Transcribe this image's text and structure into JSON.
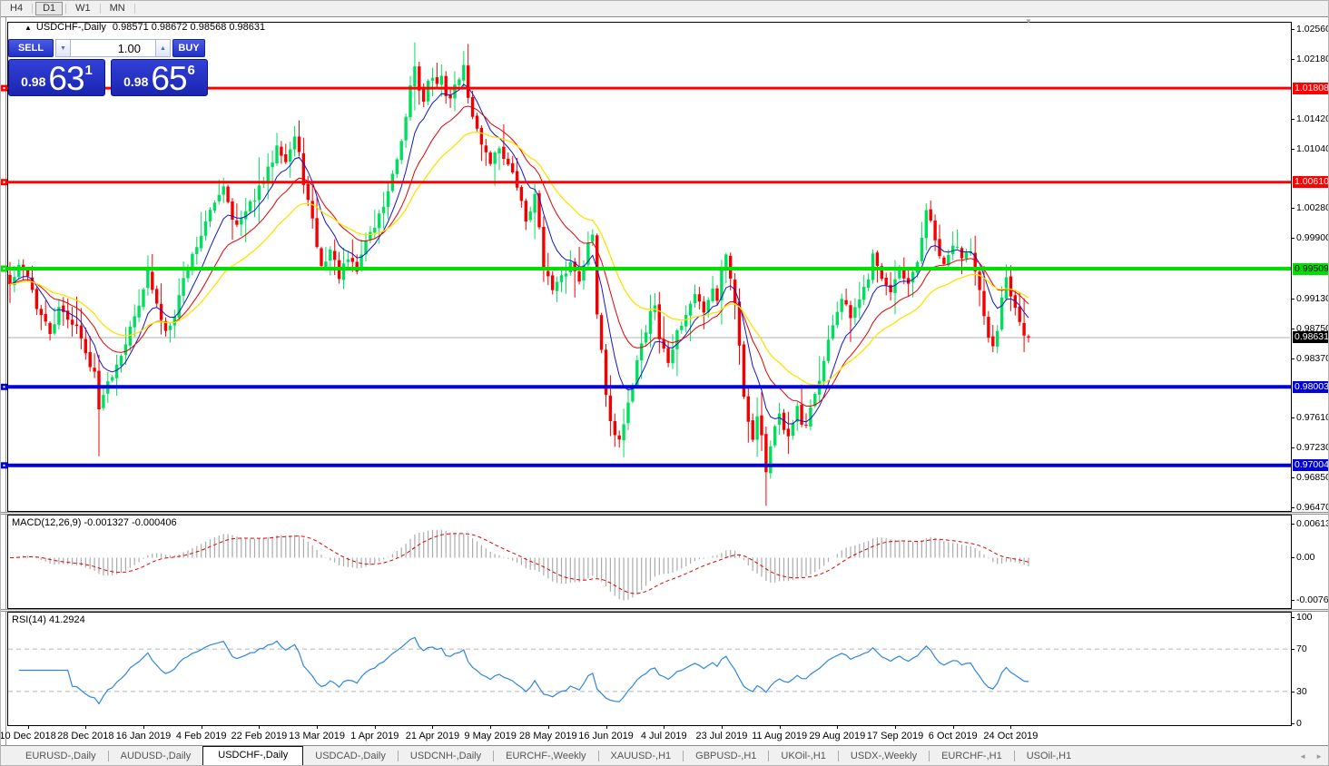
{
  "toolbar": {
    "timeframes": [
      {
        "label": "H4",
        "active": false
      },
      {
        "label": "D1",
        "active": true
      },
      {
        "label": "W1",
        "active": false
      },
      {
        "label": "MN",
        "active": false
      }
    ]
  },
  "icons": {
    "title_marker": "▲",
    "spin_down": "▼",
    "spin_up": "▲",
    "shift_marker": "▼",
    "scroll_left": "◄",
    "scroll_right": "►"
  },
  "chart": {
    "symbol_title": "USDCHF-,Daily",
    "ohlc_text": "0.98571 0.98672 0.98568 0.98631"
  },
  "trade_panel": {
    "sell_label": "SELL",
    "buy_label": "BUY",
    "volume": "1.00",
    "sell_price_base": "0.98",
    "sell_price_main": "63",
    "sell_price_pip": "1",
    "buy_price_base": "0.98",
    "buy_price_main": "65",
    "buy_price_pip": "6"
  },
  "price_axis": {
    "plain_labels": [
      "1.02560",
      "1.02180",
      "1.01420",
      "1.01040",
      "1.00280",
      "0.99900",
      "0.99130",
      "0.98750",
      "0.98370",
      "0.97610",
      "0.97230",
      "0.96850",
      "0.96470"
    ],
    "tags": [
      {
        "text": "1.01808",
        "price": 1.01808,
        "bg": "#FF0000",
        "fg": "#FFFFFF"
      },
      {
        "text": "1.00610",
        "price": 1.0061,
        "bg": "#FF0000",
        "fg": "#FFFFFF"
      },
      {
        "text": "0.99509",
        "price": 0.99509,
        "bg": "#00E000",
        "fg": "#000000"
      },
      {
        "text": "0.98631",
        "price": 0.98631,
        "bg": "#000000",
        "fg": "#FFFFFF"
      },
      {
        "text": "0.98003",
        "price": 0.98003,
        "bg": "#0000D8",
        "fg": "#FFFFFF"
      },
      {
        "text": "0.97004",
        "price": 0.97004,
        "bg": "#0000D8",
        "fg": "#FFFFFF"
      }
    ]
  },
  "macd_pane": {
    "label": "MACD(12,26,9) -0.001327 -0.000406",
    "axis_labels": [
      {
        "text": "0.00613",
        "value": 0.00613
      },
      {
        "text": "0.00",
        "value": 0
      },
      {
        "text": "-0.007612",
        "value": -0.007612
      }
    ]
  },
  "rsi_pane": {
    "label": "RSI(14) 41.2924",
    "axis_labels": [
      {
        "text": "100",
        "value": 100
      },
      {
        "text": "70",
        "value": 70
      },
      {
        "text": "30",
        "value": 30
      },
      {
        "text": "0",
        "value": 0
      }
    ],
    "levels": [
      70,
      30
    ]
  },
  "date_axis": [
    {
      "text": "10 Dec 2018",
      "bar": 4
    },
    {
      "text": "28 Dec 2018",
      "bar": 17
    },
    {
      "text": "16 Jan 2019",
      "bar": 30
    },
    {
      "text": "4 Feb 2019",
      "bar": 43
    },
    {
      "text": "22 Feb 2019",
      "bar": 56
    },
    {
      "text": "13 Mar 2019",
      "bar": 69
    },
    {
      "text": "1 Apr 2019",
      "bar": 82
    },
    {
      "text": "21 Apr 2019",
      "bar": 95
    },
    {
      "text": "9 May 2019",
      "bar": 108
    },
    {
      "text": "28 May 2019",
      "bar": 121
    },
    {
      "text": "16 Jun 2019",
      "bar": 134
    },
    {
      "text": "4 Jul 2019",
      "bar": 147
    },
    {
      "text": "23 Jul 2019",
      "bar": 160
    },
    {
      "text": "11 Aug 2019",
      "bar": 173
    },
    {
      "text": "29 Aug 2019",
      "bar": 186
    },
    {
      "text": "17 Sep 2019",
      "bar": 199
    },
    {
      "text": "6 Oct 2019",
      "bar": 212
    },
    {
      "text": "24 Oct 2019",
      "bar": 225
    }
  ],
  "tabs": [
    {
      "label": "EURUSD-,Daily",
      "active": false
    },
    {
      "label": "AUDUSD-,Daily",
      "active": false
    },
    {
      "label": "USDCHF-,Daily",
      "active": true
    },
    {
      "label": "USDCAD-,Daily",
      "active": false
    },
    {
      "label": "USDCNH-,Daily",
      "active": false
    },
    {
      "label": "EURCHF-,Weekly",
      "active": false
    },
    {
      "label": "XAUUSD-,H1",
      "active": false
    },
    {
      "label": "GBPUSD-,H1",
      "active": false
    },
    {
      "label": "UKOil-,H1",
      "active": false
    },
    {
      "label": "USDX-,Weekly",
      "active": false
    },
    {
      "label": "EURCHF-,H1",
      "active": false
    },
    {
      "label": "USOil-,H1",
      "active": false
    }
  ],
  "colors": {
    "up": "#00DE5E",
    "down": "#F40000",
    "ma_fast": "#1414C8",
    "ma_mid": "#E00000",
    "ma_slow": "#FFE100",
    "macd_hist": "#ABABAB",
    "macd_signal": "#E00000",
    "rsi_line": "#2E86E0",
    "grid_dash": "#B5B5B5",
    "current_line": "#B0B0B0"
  },
  "chart_data": {
    "type": "candlestick",
    "symbol": "USDCHF",
    "timeframe": "Daily",
    "title": "USDCHF-,Daily",
    "bars": 230,
    "price_range": [
      0.9647,
      1.0256
    ],
    "current_ohlc": {
      "open": 0.98571,
      "high": 0.98672,
      "low": 0.98568,
      "close": 0.98631
    },
    "hlines": [
      {
        "price": 1.01808,
        "color": "#FF0000",
        "width": 3,
        "role": "resistance"
      },
      {
        "price": 1.0061,
        "color": "#FF0000",
        "width": 3,
        "role": "resistance"
      },
      {
        "price": 0.99509,
        "color": "#00E000",
        "width": 4,
        "role": "pivot"
      },
      {
        "price": 0.98003,
        "color": "#0000D8",
        "width": 4,
        "role": "support"
      },
      {
        "price": 0.97004,
        "color": "#0000D8",
        "width": 4,
        "role": "support"
      }
    ],
    "current_price": 0.98631,
    "moving_average_periods": [
      8,
      17,
      30
    ],
    "macd": {
      "fast": 12,
      "slow": 26,
      "signal": 9,
      "value": -0.001327,
      "signal_value": -0.000406,
      "scale_max": 0.00613,
      "scale_min": -0.007612
    },
    "rsi": {
      "period": 14,
      "value": 41.2924,
      "levels": [
        70,
        30
      ]
    },
    "close_anchors": [
      [
        0,
        0.993
      ],
      [
        2,
        0.9952
      ],
      [
        4,
        0.9945
      ],
      [
        6,
        0.9902
      ],
      [
        9,
        0.9868
      ],
      [
        11,
        0.9898
      ],
      [
        13,
        0.9888
      ],
      [
        15,
        0.9878
      ],
      [
        17,
        0.9842
      ],
      [
        19,
        0.982
      ],
      [
        20,
        0.9768
      ],
      [
        21,
        0.9795
      ],
      [
        23,
        0.9818
      ],
      [
        26,
        0.9858
      ],
      [
        28,
        0.989
      ],
      [
        30,
        0.9928
      ],
      [
        31,
        0.9945
      ],
      [
        33,
        0.9903
      ],
      [
        35,
        0.9872
      ],
      [
        37,
        0.9895
      ],
      [
        39,
        0.9938
      ],
      [
        41,
        0.9968
      ],
      [
        43,
        0.9995
      ],
      [
        45,
        1.0022
      ],
      [
        47,
        1.0048
      ],
      [
        48,
        1.0058
      ],
      [
        50,
        1.0018
      ],
      [
        51,
        1.0005
      ],
      [
        53,
        1.0022
      ],
      [
        55,
        1.0042
      ],
      [
        57,
        1.0062
      ],
      [
        59,
        1.009
      ],
      [
        60,
        1.0112
      ],
      [
        62,
        1.0088
      ],
      [
        64,
        1.0118
      ],
      [
        65,
        1.0095
      ],
      [
        66,
        1.0062
      ],
      [
        68,
        1.001
      ],
      [
        70,
        0.9952
      ],
      [
        72,
        0.9975
      ],
      [
        74,
        0.9942
      ],
      [
        76,
        0.9962
      ],
      [
        78,
        0.9948
      ],
      [
        80,
        0.9988
      ],
      [
        82,
        1.0005
      ],
      [
        84,
        1.0032
      ],
      [
        86,
        1.0068
      ],
      [
        88,
        1.0108
      ],
      [
        89,
        1.014
      ],
      [
        90,
        1.0185
      ],
      [
        91,
        1.0208
      ],
      [
        92,
        1.018
      ],
      [
        93,
        1.0168
      ],
      [
        94,
        1.0188
      ],
      [
        95,
        1.0196
      ],
      [
        96,
        1.0183
      ],
      [
        97,
        1.0192
      ],
      [
        98,
        1.0175
      ],
      [
        99,
        1.0168
      ],
      [
        100,
        1.0182
      ],
      [
        101,
        1.0196
      ],
      [
        102,
        1.0205
      ],
      [
        103,
        1.0172
      ],
      [
        104,
        1.0142
      ],
      [
        106,
        1.0112
      ],
      [
        108,
        1.0088
      ],
      [
        110,
        1.0106
      ],
      [
        112,
        1.0082
      ],
      [
        114,
        1.0056
      ],
      [
        116,
        1.0012
      ],
      [
        117,
        1.0028
      ],
      [
        118,
        1.0042
      ],
      [
        119,
        1.0005
      ],
      [
        120,
        0.9955
      ],
      [
        122,
        0.9922
      ],
      [
        124,
        0.9938
      ],
      [
        126,
        0.9958
      ],
      [
        128,
        0.9938
      ],
      [
        130,
        0.9982
      ],
      [
        131,
        0.9992
      ],
      [
        132,
        0.9895
      ],
      [
        133,
        0.985
      ],
      [
        134,
        0.9792
      ],
      [
        135,
        0.9762
      ],
      [
        136,
        0.9742
      ],
      [
        137,
        0.9728
      ],
      [
        138,
        0.9752
      ],
      [
        139,
        0.9775
      ],
      [
        141,
        0.9838
      ],
      [
        143,
        0.9872
      ],
      [
        144,
        0.9898
      ],
      [
        145,
        0.9905
      ],
      [
        146,
        0.9862
      ],
      [
        148,
        0.9832
      ],
      [
        150,
        0.9868
      ],
      [
        152,
        0.9892
      ],
      [
        154,
        0.9918
      ],
      [
        156,
        0.9898
      ],
      [
        158,
        0.9928
      ],
      [
        159,
        0.9912
      ],
      [
        160,
        0.9948
      ],
      [
        161,
        0.9972
      ],
      [
        162,
        0.9942
      ],
      [
        163,
        0.9905
      ],
      [
        164,
        0.9855
      ],
      [
        165,
        0.9792
      ],
      [
        166,
        0.9758
      ],
      [
        167,
        0.9738
      ],
      [
        168,
        0.9762
      ],
      [
        169,
        0.9742
      ],
      [
        170,
        0.9692
      ],
      [
        171,
        0.9726
      ],
      [
        172,
        0.9748
      ],
      [
        173,
        0.9762
      ],
      [
        174,
        0.9742
      ],
      [
        175,
        0.9738
      ],
      [
        176,
        0.9758
      ],
      [
        177,
        0.9772
      ],
      [
        178,
        0.9752
      ],
      [
        179,
        0.9748
      ],
      [
        181,
        0.9792
      ],
      [
        183,
        0.9832
      ],
      [
        185,
        0.9882
      ],
      [
        187,
        0.9912
      ],
      [
        189,
        0.9888
      ],
      [
        191,
        0.9908
      ],
      [
        193,
        0.9942
      ],
      [
        194,
        0.9975
      ],
      [
        195,
        0.9958
      ],
      [
        196,
        0.9938
      ],
      [
        198,
        0.9918
      ],
      [
        200,
        0.9946
      ],
      [
        202,
        0.9928
      ],
      [
        204,
        0.9958
      ],
      [
        205,
        0.9992
      ],
      [
        206,
        1.0026
      ],
      [
        207,
        1.0008
      ],
      [
        208,
        0.9985
      ],
      [
        210,
        0.9952
      ],
      [
        212,
        0.9982
      ],
      [
        214,
        0.9968
      ],
      [
        216,
        0.9978
      ],
      [
        217,
        0.9952
      ],
      [
        218,
        0.9922
      ],
      [
        219,
        0.9888
      ],
      [
        220,
        0.9858
      ],
      [
        221,
        0.9848
      ],
      [
        222,
        0.9872
      ],
      [
        223,
        0.9912
      ],
      [
        224,
        0.9944
      ],
      [
        225,
        0.9918
      ],
      [
        226,
        0.9905
      ],
      [
        227,
        0.9888
      ],
      [
        228,
        0.9868
      ],
      [
        229,
        0.98631
      ]
    ],
    "wick_overrides": {
      "20": {
        "low": 0.9712
      },
      "60": {
        "high": 1.0124
      },
      "91": {
        "high": 1.0239
      },
      "102": {
        "high": 1.0228
      },
      "136": {
        "low": 0.9724
      },
      "170": {
        "low": 0.9649
      },
      "206": {
        "high": 1.0034
      },
      "229": {
        "high": 0.98672,
        "low": 0.98568
      }
    }
  }
}
